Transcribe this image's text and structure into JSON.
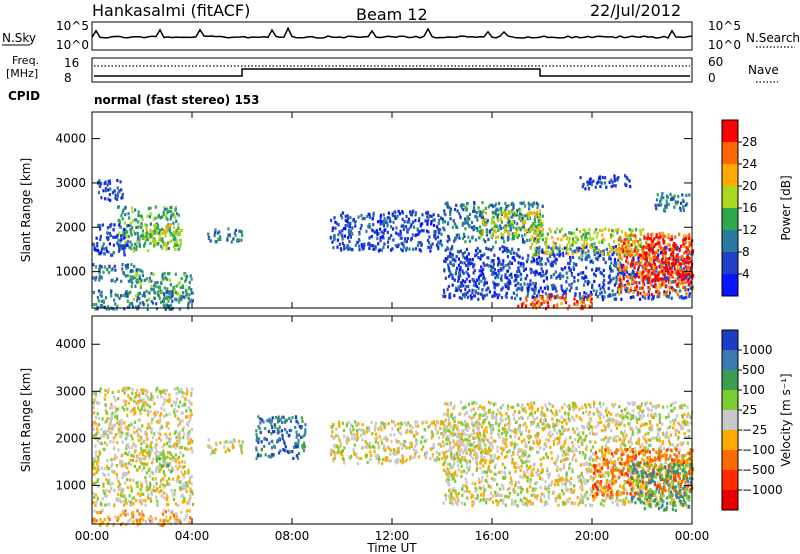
{
  "header": {
    "station": "Hankasalmi (fitACF)",
    "beam": "Beam 12",
    "date": "22/Jul/2012"
  },
  "top_panels": {
    "nsky_label": "N.Sky",
    "nsky_ticks": [
      "10^5",
      "10^0"
    ],
    "nsearch_label": "N.Search",
    "nsearch_ticks": [
      "10^5",
      "10^0"
    ],
    "freq_label_line1": "Freq.",
    "freq_label_line2": "[MHz]",
    "freq_ticks": [
      "16",
      "8"
    ],
    "nave_label": "Nave",
    "nave_ticks": [
      "60",
      "0"
    ],
    "cpid_label": "CPID",
    "cpid_value": "normal (fast stereo) 153"
  },
  "chart_data": [
    {
      "type": "heatmap",
      "name": "power",
      "ylabel": "Slant Range [km]",
      "ylim": [
        180,
        4600
      ],
      "yticks": [
        1000,
        2000,
        3000,
        4000
      ],
      "xlim_hours": [
        0,
        24
      ],
      "colorbar": {
        "label": "Power [dB]",
        "ticks": [
          "28",
          "24",
          "20",
          "16",
          "12",
          "8",
          "4"
        ],
        "colors": [
          "#ff0000",
          "#ff6600",
          "#ffaa00",
          "#a8d820",
          "#2ea84c",
          "#2a7aa0",
          "#2040c8",
          "#0a14ff"
        ]
      },
      "regions": [
        {
          "t": [
            0.2,
            1.2
          ],
          "r": [
            2600,
            3100
          ],
          "level": 1
        },
        {
          "t": [
            1.0,
            3.5
          ],
          "r": [
            1500,
            2500
          ],
          "level": 3
        },
        {
          "t": [
            2.0,
            3.6
          ],
          "r": [
            1600,
            2100
          ],
          "level": 4
        },
        {
          "t": [
            0.0,
            1.5
          ],
          "r": [
            1400,
            2100
          ],
          "level": 1
        },
        {
          "t": [
            0.0,
            2.0
          ],
          "r": [
            800,
            1200
          ],
          "level": 2
        },
        {
          "t": [
            1.5,
            4.0
          ],
          "r": [
            400,
            1000
          ],
          "level": 3
        },
        {
          "t": [
            0.0,
            4.0
          ],
          "r": [
            180,
            600
          ],
          "level": 2
        },
        {
          "t": [
            4.5,
            6.0
          ],
          "r": [
            1700,
            2000
          ],
          "level": 2
        },
        {
          "t": [
            9.5,
            14.0
          ],
          "r": [
            1500,
            2400
          ],
          "level": 1
        },
        {
          "t": [
            14.0,
            18.0
          ],
          "r": [
            1700,
            2600
          ],
          "level": 2
        },
        {
          "t": [
            15.5,
            18.0
          ],
          "r": [
            1800,
            2400
          ],
          "level": 4
        },
        {
          "t": [
            14.0,
            24.0
          ],
          "r": [
            400,
            1600
          ],
          "level": 1
        },
        {
          "t": [
            17.0,
            20.0
          ],
          "r": [
            200,
            500
          ],
          "level": 6
        },
        {
          "t": [
            17.5,
            22.0
          ],
          "r": [
            1400,
            2000
          ],
          "level": 4
        },
        {
          "t": [
            21.0,
            24.0
          ],
          "r": [
            500,
            1900
          ],
          "level": 6
        },
        {
          "t": [
            22.0,
            24.0
          ],
          "r": [
            800,
            1800
          ],
          "level": 7
        },
        {
          "t": [
            19.5,
            21.5
          ],
          "r": [
            2900,
            3200
          ],
          "level": 1
        },
        {
          "t": [
            22.5,
            24.0
          ],
          "r": [
            2400,
            2800
          ],
          "level": 2
        }
      ]
    },
    {
      "type": "heatmap",
      "name": "velocity",
      "ylabel": "Slant Range [km]",
      "xlabel": "Time UT",
      "ylim": [
        180,
        4600
      ],
      "yticks": [
        1000,
        2000,
        3000,
        4000
      ],
      "xlim_hours": [
        0,
        24
      ],
      "xticks": [
        "00:00",
        "04:00",
        "08:00",
        "12:00",
        "16:00",
        "20:00",
        "00:00"
      ],
      "colorbar": {
        "label": "Velocity [m s⁻¹]",
        "ticks": [
          "1000",
          "500",
          "100",
          "25",
          "−25",
          "−100",
          "−500",
          "−1000"
        ],
        "colors": [
          "#1a3cc8",
          "#3a7ab0",
          "#3aa050",
          "#7acc30",
          "#c8c8c8",
          "#ffaa00",
          "#ff6a00",
          "#ff2a00",
          "#e80000"
        ]
      },
      "regions": [
        {
          "t": [
            0.0,
            4.0
          ],
          "r": [
            600,
            3100
          ],
          "level": 4
        },
        {
          "t": [
            0.0,
            4.0
          ],
          "r": [
            180,
            500
          ],
          "level": 3
        },
        {
          "t": [
            2.5,
            3.2
          ],
          "r": [
            1300,
            1700
          ],
          "level": 5
        },
        {
          "t": [
            6.5,
            8.5
          ],
          "r": [
            1600,
            2500
          ],
          "level": 7
        },
        {
          "t": [
            4.5,
            6.0
          ],
          "r": [
            1700,
            2000
          ],
          "level": 4
        },
        {
          "t": [
            9.5,
            16.0
          ],
          "r": [
            1500,
            2400
          ],
          "level": 4
        },
        {
          "t": [
            14.0,
            24.0
          ],
          "r": [
            600,
            2800
          ],
          "level": 4
        },
        {
          "t": [
            20.0,
            24.0
          ],
          "r": [
            800,
            1800
          ],
          "level": 2
        },
        {
          "t": [
            21.5,
            24.0
          ],
          "r": [
            500,
            1500
          ],
          "level": 6
        }
      ]
    }
  ]
}
